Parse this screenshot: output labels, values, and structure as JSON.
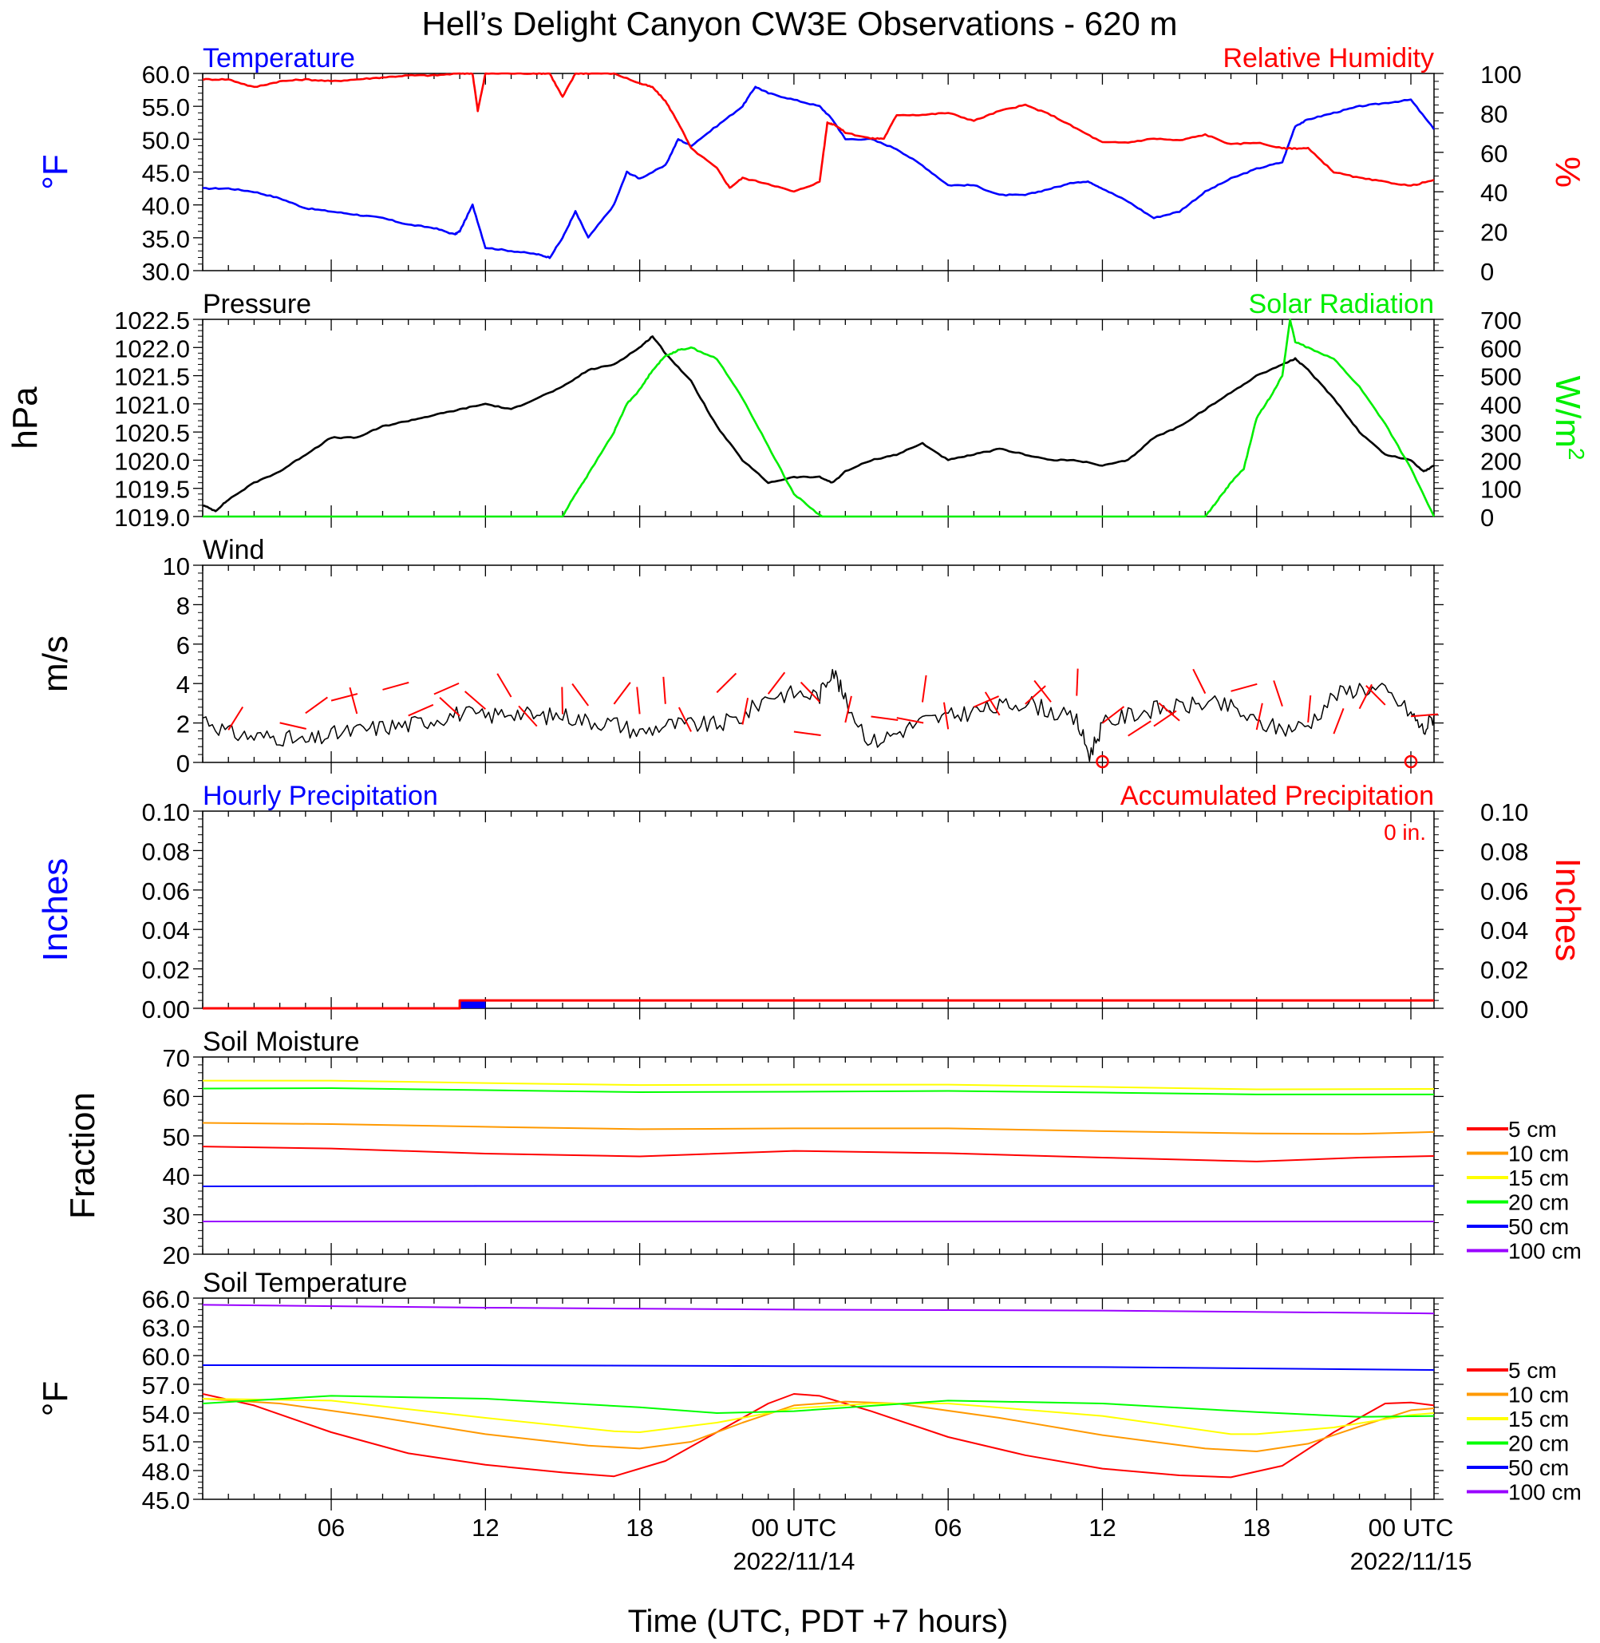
{
  "title": "Hell’s Delight Canyon CW3E Observations - 620 m",
  "xlabel": "Time (UTC, PDT +7 hours)",
  "x_ticks": [
    {
      "label": "06",
      "hour": 6
    },
    {
      "label": "12",
      "hour": 12
    },
    {
      "label": "18",
      "hour": 18
    },
    {
      "label": "00 UTC",
      "hour": 24,
      "date": "2022/11/14"
    },
    {
      "label": "06",
      "hour": 30
    },
    {
      "label": "12",
      "hour": 36
    },
    {
      "label": "18",
      "hour": 42
    },
    {
      "label": "00 UTC",
      "hour": 48,
      "date": "2022/11/15"
    }
  ],
  "x_range_hours": [
    1,
    48.9
  ],
  "colors": {
    "blue": "#0000ff",
    "red": "#ff0000",
    "green": "#00ee00",
    "black": "#000000",
    "orange": "#ff9900",
    "yellow": "#ffff00",
    "soil_green": "#00ff00",
    "purple": "#9900ff"
  },
  "chart_data": [
    {
      "id": "temp_rh",
      "type": "line",
      "left_title": "Temperature",
      "right_title": "Relative Humidity",
      "ylabel": "°F",
      "ylabel_right": "%",
      "ylim": [
        30,
        60
      ],
      "ylim_right": [
        0,
        100
      ],
      "yticks": [
        "30.0",
        "35.0",
        "40.0",
        "45.0",
        "50.0",
        "55.0",
        "60.0"
      ],
      "yticks_right": [
        "0",
        "20",
        "40",
        "60",
        "80",
        "100"
      ],
      "series": [
        {
          "color": "blue",
          "axis": "left",
          "x": [
            1,
            2,
            3,
            4,
            5,
            6,
            7,
            8,
            9,
            10,
            10.8,
            11,
            11.5,
            12,
            13,
            14,
            14.5,
            15,
            15.5,
            16,
            17,
            17.5,
            18,
            19,
            19.5,
            20,
            21,
            22,
            22.5,
            23,
            24,
            25,
            25.5,
            26,
            27,
            28,
            29,
            30,
            31,
            32,
            33,
            34,
            35,
            35.5,
            36,
            37,
            38,
            39,
            40,
            41,
            42,
            43,
            43.5,
            44,
            45,
            46,
            47,
            48,
            48.9
          ],
          "y": [
            42.5,
            42.5,
            42,
            41,
            39.5,
            39,
            38.5,
            38,
            37,
            36.5,
            35.5,
            36,
            40,
            33.5,
            33,
            32.5,
            32,
            35,
            39,
            35,
            40,
            45,
            44,
            46,
            50,
            49,
            52,
            55,
            58,
            57,
            56,
            55,
            53,
            50,
            50,
            48.5,
            46,
            43,
            43,
            41.5,
            41.5,
            42.5,
            43.5,
            43.5,
            42.5,
            40.5,
            38,
            39,
            42,
            44,
            45.5,
            46.5,
            52,
            53,
            54,
            55,
            55.5,
            56,
            51.5
          ]
        },
        {
          "color": "red",
          "axis": "right",
          "x": [
            1,
            2,
            3,
            4,
            5,
            6,
            7,
            8,
            9,
            10,
            11,
            11.5,
            11.7,
            12,
            13,
            14,
            14.5,
            15,
            15.5,
            16,
            17,
            18,
            18.5,
            19,
            19.5,
            20,
            21,
            21.5,
            22,
            23,
            24,
            25,
            25.3,
            25.6,
            26,
            27,
            27.5,
            28,
            29,
            30,
            31,
            32,
            33,
            34,
            35,
            36,
            37,
            38,
            39,
            40,
            41,
            42,
            43,
            43.5,
            44,
            45,
            46,
            47,
            48,
            48.9
          ],
          "y": [
            97,
            97,
            93,
            96,
            97,
            96,
            97,
            98,
            99,
            99,
            100,
            100,
            81,
            100,
            100,
            100,
            100,
            88,
            100,
            100,
            100,
            95,
            93,
            86,
            75,
            62,
            52,
            42,
            47,
            44,
            40,
            45,
            75,
            74,
            70,
            67,
            67,
            79,
            79,
            80,
            76,
            81,
            84,
            79,
            72,
            65,
            65,
            67,
            66,
            69,
            64,
            65,
            62,
            62,
            62,
            50,
            47,
            45,
            43,
            46
          ]
        }
      ]
    },
    {
      "id": "pressure_solar",
      "type": "line",
      "left_title": "Pressure",
      "right_title": "Solar Radiation",
      "ylabel": "hPa",
      "ylabel_right": "W/m2",
      "ylim": [
        1019,
        1022.5
      ],
      "ylim_right": [
        0,
        700
      ],
      "yticks": [
        "1019.0",
        "1019.5",
        "1020.0",
        "1020.5",
        "1021.0",
        "1021.5",
        "1022.0",
        "1022.5"
      ],
      "yticks_right": [
        "0",
        "100",
        "200",
        "300",
        "400",
        "500",
        "600",
        "700"
      ],
      "series": [
        {
          "color": "black",
          "axis": "left",
          "x": [
            1,
            1.5,
            2,
            3,
            4,
            5,
            6,
            7,
            8,
            9,
            10,
            11,
            12,
            13,
            14,
            15,
            16,
            17,
            18,
            18.5,
            19,
            20,
            21,
            22,
            23,
            24,
            25,
            25.5,
            26,
            27,
            28,
            29,
            30,
            31,
            32,
            33,
            34,
            35,
            36,
            37,
            38,
            39,
            40,
            41,
            42,
            43,
            43.5,
            44,
            45,
            46,
            47,
            48,
            48.5,
            48.9
          ],
          "y": [
            1019.2,
            1019.1,
            1019.3,
            1019.6,
            1019.8,
            1020.1,
            1020.4,
            1020.4,
            1020.6,
            1020.7,
            1020.8,
            1020.9,
            1021.0,
            1020.9,
            1021.1,
            1021.3,
            1021.6,
            1021.7,
            1022.0,
            1022.2,
            1021.9,
            1021.4,
            1020.6,
            1020.0,
            1019.6,
            1019.7,
            1019.7,
            1019.6,
            1019.8,
            1020.0,
            1020.1,
            1020.3,
            1020.0,
            1020.1,
            1020.2,
            1020.1,
            1020.0,
            1020.0,
            1019.9,
            1020.0,
            1020.4,
            1020.6,
            1020.9,
            1021.2,
            1021.5,
            1021.7,
            1021.8,
            1021.6,
            1021.1,
            1020.5,
            1020.1,
            1020.0,
            1019.8,
            1019.9
          ]
        },
        {
          "color": "green",
          "axis": "right",
          "x": [
            1,
            15,
            15.5,
            16,
            17,
            17.5,
            18,
            18.5,
            19,
            19.5,
            20,
            21,
            22,
            23,
            24,
            25,
            25.1,
            40.0,
            40.5,
            41,
            41.5,
            42,
            42.5,
            43,
            43.3,
            43.5,
            44,
            45,
            46,
            47,
            48,
            48.9
          ],
          "y": [
            0,
            0,
            80,
            150,
            300,
            400,
            450,
            520,
            570,
            590,
            600,
            560,
            420,
            250,
            80,
            5,
            0,
            0,
            60,
            120,
            170,
            350,
            420,
            500,
            700,
            620,
            600,
            560,
            460,
            330,
            170,
            0
          ]
        }
      ]
    },
    {
      "id": "wind",
      "type": "line",
      "left_title": "Wind",
      "ylabel": "m/s",
      "ylim": [
        0,
        10
      ],
      "yticks": [
        "0",
        "2",
        "4",
        "6",
        "8",
        "10"
      ],
      "series": [
        {
          "color": "black",
          "axis": "left",
          "x": [
            1,
            2,
            3,
            4,
            5,
            6,
            7,
            8,
            9,
            10,
            11,
            12,
            13,
            14,
            15,
            16,
            17,
            18,
            19,
            20,
            21,
            22,
            23,
            24,
            25,
            25.5,
            26,
            27,
            28,
            29,
            30,
            31,
            32,
            33,
            34,
            35,
            35.5,
            36,
            37,
            38,
            39,
            40,
            41,
            42,
            43,
            44,
            45,
            46,
            47,
            48,
            48.5,
            48.9
          ],
          "y": [
            2.3,
            1.5,
            1.3,
            1.3,
            1.0,
            1.4,
            1.6,
            1.8,
            1.9,
            2.2,
            2.5,
            2.3,
            2.6,
            2.3,
            2.4,
            2.1,
            2.0,
            1.5,
            1.9,
            1.9,
            1.9,
            2.3,
            3.4,
            3.5,
            3.4,
            4.8,
            3.1,
            1.0,
            1.5,
            2.1,
            2.3,
            2.6,
            2.8,
            3.1,
            2.6,
            2.1,
            0.4,
            1.9,
            2.4,
            2.7,
            2.8,
            3.0,
            2.8,
            2.0,
            1.7,
            1.9,
            3.4,
            3.8,
            3.6,
            2.5,
            1.6,
            2.4
          ]
        }
      ],
      "barb_hours": [
        2,
        4,
        5,
        6,
        7,
        8,
        9,
        10,
        11,
        12,
        13,
        14,
        15,
        16,
        17,
        18,
        19,
        20,
        21,
        22,
        23,
        24,
        25,
        26,
        27,
        28,
        29,
        30,
        31,
        32,
        33,
        34,
        35,
        36,
        37,
        38,
        39,
        40,
        41,
        42,
        43,
        44,
        45,
        46,
        47,
        48
      ],
      "calm_hours": [
        36,
        48
      ]
    },
    {
      "id": "precip",
      "type": "bar",
      "left_title": "Hourly Precipitation",
      "right_title": "Accumulated Precipitation",
      "total_label": "0 in.",
      "ylabel": "Inches",
      "ylabel_right": "Inches",
      "ylim": [
        0,
        0.1
      ],
      "ylim_right": [
        0,
        0.1
      ],
      "yticks": [
        "0.00",
        "0.02",
        "0.04",
        "0.06",
        "0.08",
        "0.10"
      ],
      "yticks_right": [
        "0.00",
        "0.02",
        "0.04",
        "0.06",
        "0.08",
        "0.10"
      ],
      "hourly": [
        {
          "hour": 12,
          "value": 0.004
        }
      ],
      "accumulated": {
        "x": [
          1,
          11,
          11,
          48.9
        ],
        "y": [
          0,
          0,
          0.004,
          0.004
        ]
      }
    },
    {
      "id": "soil_moisture",
      "type": "line",
      "left_title": "Soil Moisture",
      "ylabel": "Fraction",
      "ylim": [
        20,
        70
      ],
      "yticks": [
        "20",
        "30",
        "40",
        "50",
        "60",
        "70"
      ],
      "legend": [
        "5 cm",
        "10 cm",
        "15 cm",
        "20 cm",
        "50 cm",
        "100 cm"
      ],
      "series": [
        {
          "name": "5 cm",
          "color": "red",
          "x": [
            1,
            6,
            12,
            18,
            24,
            30,
            36,
            42,
            46,
            48.9
          ],
          "y": [
            47.3,
            46.8,
            45.5,
            44.8,
            46.2,
            45.6,
            44.5,
            43.5,
            44.5,
            44.9
          ]
        },
        {
          "name": "10 cm",
          "color": "orange",
          "x": [
            1,
            6,
            12,
            18,
            24,
            30,
            36,
            42,
            46,
            48.9
          ],
          "y": [
            53.3,
            53.0,
            52.3,
            51.7,
            51.9,
            51.9,
            51.2,
            50.6,
            50.5,
            51.0
          ]
        },
        {
          "name": "15 cm",
          "color": "yellow",
          "x": [
            1,
            6,
            12,
            18,
            24,
            30,
            36,
            42,
            48.9
          ],
          "y": [
            64.0,
            64.0,
            63.4,
            62.9,
            63.0,
            63.0,
            62.4,
            61.8,
            61.9
          ]
        },
        {
          "name": "20 cm",
          "color": "soil_green",
          "x": [
            1,
            6,
            12,
            18,
            24,
            30,
            36,
            42,
            48.9
          ],
          "y": [
            62.0,
            62.1,
            61.6,
            61.1,
            61.2,
            61.4,
            61.0,
            60.5,
            60.5
          ]
        },
        {
          "name": "50 cm",
          "color": "blue",
          "x": [
            1,
            12,
            24,
            36,
            48.9
          ],
          "y": [
            37.2,
            37.3,
            37.3,
            37.3,
            37.3
          ]
        },
        {
          "name": "100 cm",
          "color": "purple",
          "x": [
            1,
            12,
            24,
            36,
            48.9
          ],
          "y": [
            28.3,
            28.3,
            28.3,
            28.3,
            28.3
          ]
        }
      ]
    },
    {
      "id": "soil_temp",
      "type": "line",
      "left_title": "Soil Temperature",
      "ylabel": "°F",
      "ylim": [
        45,
        66
      ],
      "yticks": [
        "45.0",
        "48.0",
        "51.0",
        "54.0",
        "57.0",
        "60.0",
        "63.0",
        "66.0"
      ],
      "legend": [
        "5 cm",
        "10 cm",
        "15 cm",
        "20 cm",
        "50 cm",
        "100 cm"
      ],
      "series": [
        {
          "name": "5 cm",
          "color": "red",
          "x": [
            1,
            3,
            6,
            9,
            12,
            15,
            17,
            19,
            21,
            23,
            24,
            25,
            27,
            30,
            33,
            36,
            39,
            41,
            43,
            45,
            47,
            48,
            48.9
          ],
          "y": [
            56.0,
            54.8,
            52.0,
            49.8,
            48.6,
            47.8,
            47.4,
            49.0,
            52.0,
            55.0,
            56.0,
            55.8,
            54.2,
            51.5,
            49.6,
            48.2,
            47.5,
            47.3,
            48.5,
            52.0,
            55.0,
            55.1,
            54.8
          ]
        },
        {
          "name": "10 cm",
          "color": "orange",
          "x": [
            1,
            4,
            8,
            12,
            16,
            18,
            20,
            22,
            24,
            26,
            28,
            32,
            36,
            40,
            42,
            44,
            46,
            48,
            48.9
          ],
          "y": [
            55.5,
            55.0,
            53.5,
            51.8,
            50.6,
            50.3,
            51.0,
            53.0,
            54.8,
            55.2,
            55.0,
            53.5,
            51.7,
            50.3,
            50.0,
            50.8,
            52.6,
            54.3,
            54.5
          ]
        },
        {
          "name": "15 cm",
          "color": "yellow",
          "x": [
            1,
            6,
            12,
            17,
            18,
            21,
            24,
            27,
            30,
            36,
            41,
            42,
            45,
            48,
            48.9
          ],
          "y": [
            55.5,
            55.3,
            53.5,
            52.1,
            52.0,
            53.0,
            54.5,
            55.0,
            55.0,
            53.7,
            51.8,
            51.8,
            52.5,
            53.8,
            54.0
          ]
        },
        {
          "name": "20 cm",
          "color": "soil_green",
          "x": [
            1,
            6,
            12,
            18,
            21,
            24,
            30,
            36,
            42,
            46,
            48.9
          ],
          "y": [
            55.0,
            55.8,
            55.5,
            54.6,
            54.0,
            54.2,
            55.3,
            55.0,
            54.1,
            53.6,
            53.7
          ]
        },
        {
          "name": "50 cm",
          "color": "blue",
          "x": [
            1,
            12,
            24,
            36,
            48.9
          ],
          "y": [
            59.0,
            59.0,
            58.9,
            58.8,
            58.5
          ]
        },
        {
          "name": "100 cm",
          "color": "purple",
          "x": [
            1,
            12,
            24,
            36,
            48.9
          ],
          "y": [
            65.3,
            65.0,
            64.8,
            64.7,
            64.4
          ]
        }
      ]
    }
  ]
}
